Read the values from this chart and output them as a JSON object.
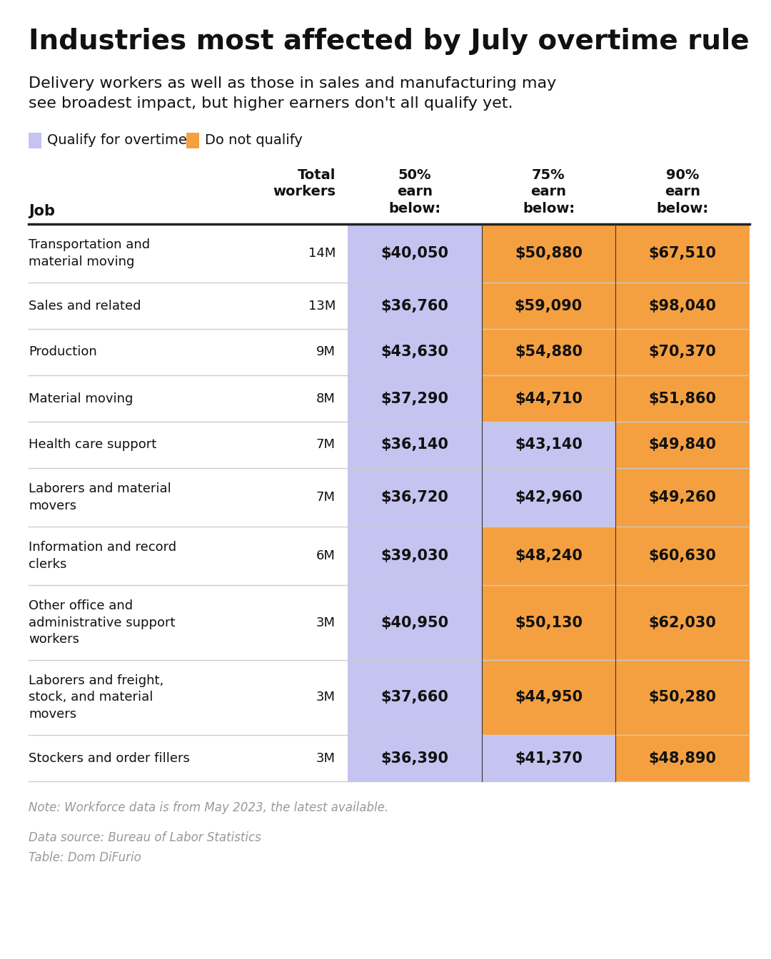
{
  "title": "Industries most affected by July overtime rule",
  "subtitle": "Delivery workers as well as those in sales and manufacturing may\nsee broadest impact, but higher earners don't all qualify yet.",
  "legend_qualify": "Qualify for overtime",
  "legend_not_qualify": "Do not qualify",
  "color_qualify": "#c5c3f0",
  "color_not_qualify": "#f5a040",
  "threshold": 43888,
  "col_header_job": "Job",
  "col_header_total": "Total\nworkers",
  "col_header_p50": "50%\nearn\nbelow:",
  "col_header_p75": "75%\nearn\nbelow:",
  "col_header_p90": "90%\nearn\nbelow:",
  "rows": [
    {
      "job": "Transportation and\nmaterial moving",
      "total": "14M",
      "p50": "$40,050",
      "p75": "$50,880",
      "p90": "$67,510",
      "p50_val": 40050,
      "p75_val": 50880,
      "p90_val": 67510
    },
    {
      "job": "Sales and related",
      "total": "13M",
      "p50": "$36,760",
      "p75": "$59,090",
      "p90": "$98,040",
      "p50_val": 36760,
      "p75_val": 59090,
      "p90_val": 98040
    },
    {
      "job": "Production",
      "total": "9M",
      "p50": "$43,630",
      "p75": "$54,880",
      "p90": "$70,370",
      "p50_val": 43630,
      "p75_val": 54880,
      "p90_val": 70370
    },
    {
      "job": "Material moving",
      "total": "8M",
      "p50": "$37,290",
      "p75": "$44,710",
      "p90": "$51,860",
      "p50_val": 37290,
      "p75_val": 44710,
      "p90_val": 51860
    },
    {
      "job": "Health care support",
      "total": "7M",
      "p50": "$36,140",
      "p75": "$43,140",
      "p90": "$49,840",
      "p50_val": 36140,
      "p75_val": 43140,
      "p90_val": 49840
    },
    {
      "job": "Laborers and material\nmovers",
      "total": "7M",
      "p50": "$36,720",
      "p75": "$42,960",
      "p90": "$49,260",
      "p50_val": 36720,
      "p75_val": 42960,
      "p90_val": 49260
    },
    {
      "job": "Information and record\nclerks",
      "total": "6M",
      "p50": "$39,030",
      "p75": "$48,240",
      "p90": "$60,630",
      "p50_val": 39030,
      "p75_val": 48240,
      "p90_val": 60630
    },
    {
      "job": "Other office and\nadministrative support\nworkers",
      "total": "3M",
      "p50": "$40,950",
      "p75": "$50,130",
      "p90": "$62,030",
      "p50_val": 40950,
      "p75_val": 50130,
      "p90_val": 62030
    },
    {
      "job": "Laborers and freight,\nstock, and material\nmovers",
      "total": "3M",
      "p50": "$37,660",
      "p75": "$44,950",
      "p90": "$50,280",
      "p50_val": 37660,
      "p75_val": 44950,
      "p90_val": 50280
    },
    {
      "job": "Stockers and order fillers",
      "total": "3M",
      "p50": "$36,390",
      "p75": "$41,370",
      "p90": "$48,890",
      "p50_val": 36390,
      "p75_val": 41370,
      "p90_val": 48890
    }
  ],
  "note": "Note: Workforce data is from May 2023, the latest available.",
  "source": "Data source: Bureau of Labor Statistics\nTable: Dom DiFurio",
  "bg_color": "#ffffff",
  "text_color": "#111111",
  "note_color": "#999999",
  "header_line_color": "#222222",
  "cell_line_color": "#333333",
  "row_line_color": "#cccccc",
  "title_fontsize": 28,
  "subtitle_fontsize": 16,
  "header_fontsize": 14,
  "cell_fontsize": 15,
  "note_fontsize": 12
}
